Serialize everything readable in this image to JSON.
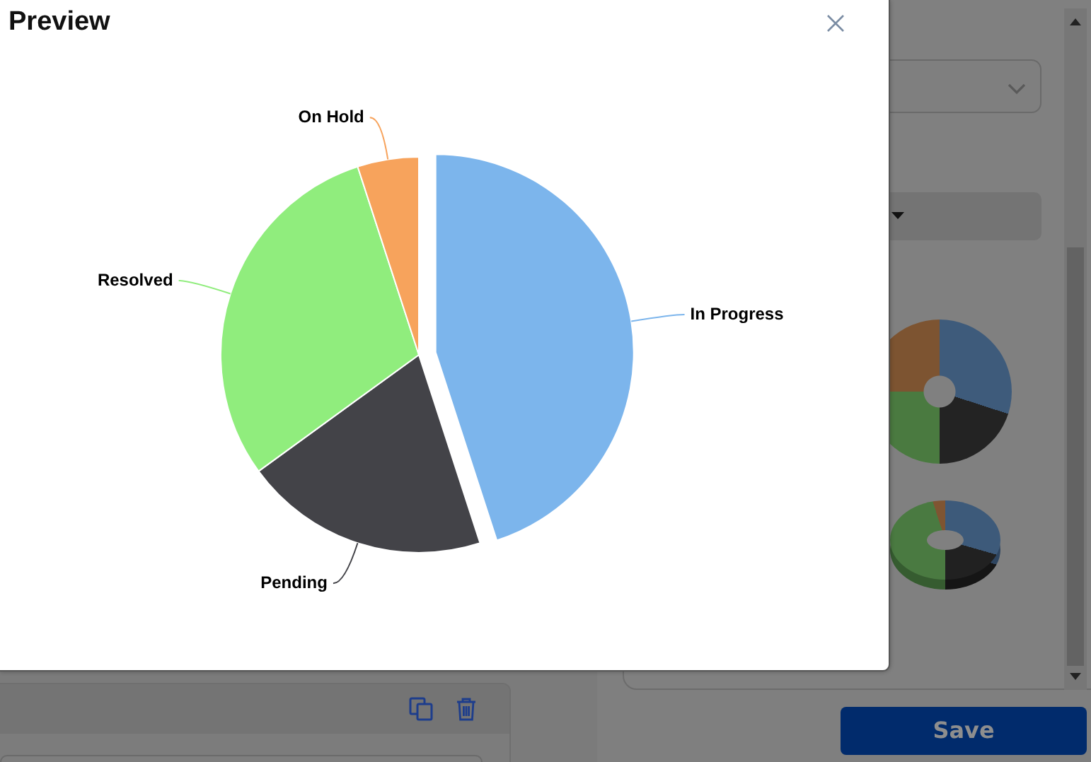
{
  "chart_data": {
    "type": "pie",
    "title": "Preview",
    "categories": [
      "In Progress",
      "Pending",
      "Resolved",
      "On Hold"
    ],
    "values": [
      45,
      20,
      30,
      5
    ],
    "colors": [
      "#7cb5ec",
      "#434348",
      "#90ed7d",
      "#f7a35c"
    ],
    "annotations": [
      "Save"
    ]
  }
}
